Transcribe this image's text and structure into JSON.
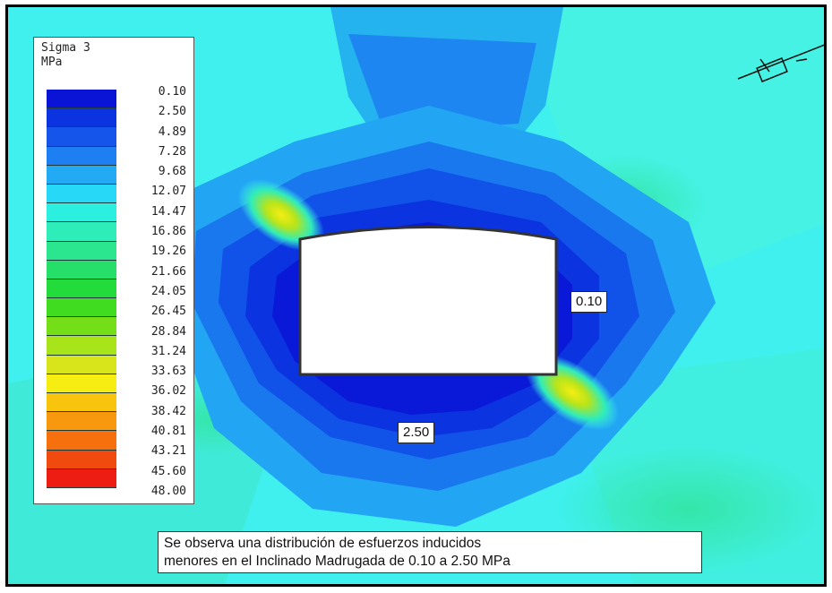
{
  "legend": {
    "title": "Sigma 3",
    "unit": "MPa",
    "levels": [
      "0.10",
      "2.50",
      "4.89",
      "7.28",
      "9.68",
      "12.07",
      "14.47",
      "16.86",
      "19.26",
      "21.66",
      "24.05",
      "26.45",
      "28.84",
      "31.24",
      "33.63",
      "36.02",
      "38.42",
      "40.81",
      "43.21",
      "45.60",
      "48.00"
    ],
    "colors": [
      "#0a14d6",
      "#0b33e0",
      "#1555ea",
      "#1d7ff2",
      "#22aaf5",
      "#28d8f7",
      "#2cf0df",
      "#2fedb9",
      "#2be58f",
      "#25df68",
      "#23db3a",
      "#40dc20",
      "#74df18",
      "#a8e41a",
      "#d8e51a",
      "#f6ed12",
      "#f8c40d",
      "#f8980e",
      "#f6700e",
      "#f04a0e",
      "#ed1d14"
    ]
  },
  "labels": {
    "right_value": "0.10",
    "bottom_value": "2.50"
  },
  "note": {
    "line1": "Se observa una distribución de esfuerzos inducidos",
    "line2": "menores en el Inclinado Madrugada de 0.10 a 2.50 MPa"
  }
}
